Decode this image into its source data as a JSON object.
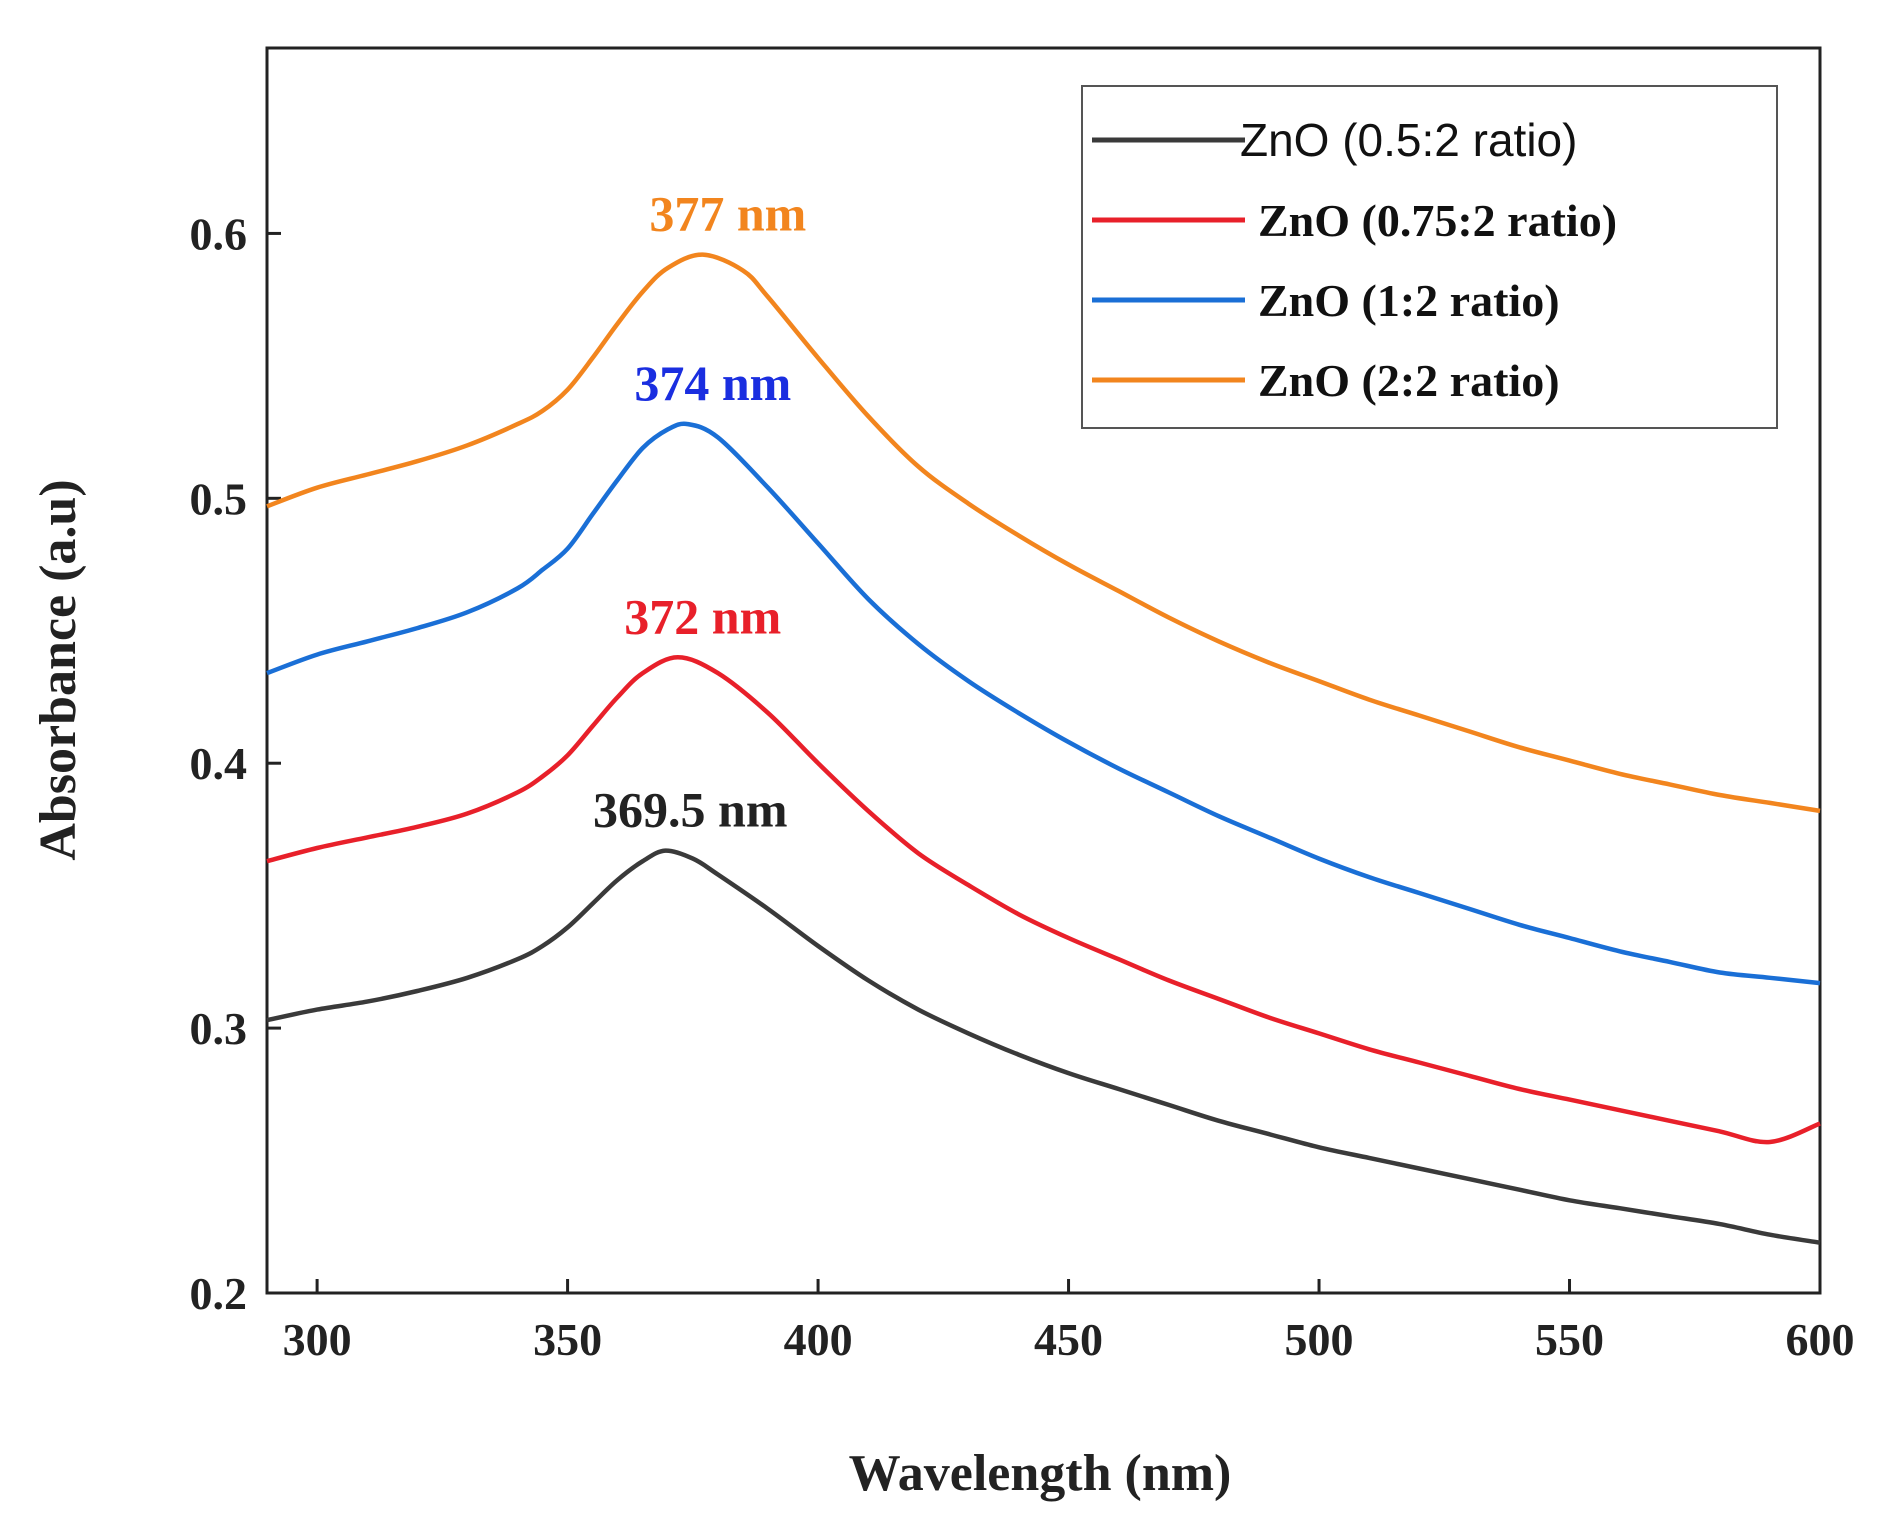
{
  "chart_data": {
    "type": "line",
    "xlabel": "Wavelength (nm)",
    "ylabel": "Absorbance (a.u)",
    "xlim": [
      290,
      600
    ],
    "ylim": [
      0.2,
      0.67
    ],
    "xticks": [
      300,
      350,
      400,
      450,
      500,
      550,
      600
    ],
    "yticks": [
      0.2,
      0.3,
      0.4,
      0.5,
      0.6
    ],
    "xtick_labels": [
      "300",
      "350",
      "400",
      "450",
      "500",
      "550",
      "600"
    ],
    "ytick_labels": [
      "0.2",
      "0.3",
      "0.4",
      "0.5",
      "0.6"
    ],
    "grid": false,
    "legend_position": "top-right",
    "series": [
      {
        "name": "ZnO (0.5:2 ratio)",
        "color": "#3a3a3a",
        "x": [
          290,
          300,
          310,
          320,
          330,
          340,
          345,
          350,
          355,
          360,
          365,
          369.5,
          375,
          380,
          390,
          400,
          410,
          420,
          430,
          440,
          450,
          460,
          470,
          480,
          490,
          500,
          510,
          520,
          530,
          540,
          550,
          560,
          570,
          580,
          590,
          600
        ],
        "values": [
          0.303,
          0.307,
          0.31,
          0.314,
          0.319,
          0.326,
          0.331,
          0.338,
          0.347,
          0.356,
          0.363,
          0.367,
          0.364,
          0.358,
          0.345,
          0.331,
          0.318,
          0.307,
          0.298,
          0.29,
          0.283,
          0.277,
          0.271,
          0.265,
          0.26,
          0.255,
          0.251,
          0.247,
          0.243,
          0.239,
          0.235,
          0.232,
          0.229,
          0.226,
          0.222,
          0.219
        ]
      },
      {
        "name": "ZnO (0.75:2 ratio)",
        "color": "#e8202a",
        "x": [
          290,
          300,
          310,
          320,
          330,
          340,
          345,
          350,
          355,
          360,
          365,
          372,
          380,
          390,
          400,
          410,
          420,
          430,
          440,
          450,
          460,
          470,
          480,
          490,
          500,
          510,
          520,
          530,
          540,
          550,
          560,
          570,
          580,
          590,
          600
        ],
        "values": [
          0.363,
          0.368,
          0.372,
          0.376,
          0.381,
          0.389,
          0.395,
          0.403,
          0.414,
          0.425,
          0.434,
          0.44,
          0.434,
          0.419,
          0.4,
          0.382,
          0.366,
          0.354,
          0.343,
          0.334,
          0.326,
          0.318,
          0.311,
          0.304,
          0.298,
          0.292,
          0.287,
          0.282,
          0.277,
          0.273,
          0.269,
          0.265,
          0.261,
          0.257,
          0.264
        ]
      },
      {
        "name": "ZnO (1:2 ratio)",
        "color": "#1a6fd6",
        "x": [
          290,
          300,
          310,
          320,
          330,
          340,
          345,
          350,
          355,
          360,
          365,
          370,
          374,
          380,
          390,
          400,
          410,
          420,
          430,
          440,
          450,
          460,
          470,
          480,
          490,
          500,
          510,
          520,
          530,
          540,
          550,
          560,
          570,
          580,
          590,
          600
        ],
        "values": [
          0.434,
          0.441,
          0.446,
          0.451,
          0.457,
          0.466,
          0.473,
          0.481,
          0.494,
          0.507,
          0.519,
          0.526,
          0.528,
          0.523,
          0.504,
          0.483,
          0.462,
          0.445,
          0.431,
          0.419,
          0.408,
          0.398,
          0.389,
          0.38,
          0.372,
          0.364,
          0.357,
          0.351,
          0.345,
          0.339,
          0.334,
          0.329,
          0.325,
          0.321,
          0.319,
          0.317
        ]
      },
      {
        "name": "ZnO (2:2 ratio)",
        "color": "#f2851e",
        "x": [
          290,
          300,
          310,
          320,
          330,
          340,
          345,
          350,
          355,
          360,
          365,
          370,
          377,
          385,
          390,
          400,
          410,
          420,
          430,
          440,
          450,
          460,
          470,
          480,
          490,
          500,
          510,
          520,
          530,
          540,
          550,
          560,
          570,
          580,
          590,
          600
        ],
        "values": [
          0.497,
          0.504,
          0.509,
          0.514,
          0.52,
          0.528,
          0.533,
          0.541,
          0.553,
          0.566,
          0.578,
          0.587,
          0.592,
          0.586,
          0.576,
          0.553,
          0.531,
          0.512,
          0.498,
          0.486,
          0.475,
          0.465,
          0.455,
          0.446,
          0.438,
          0.431,
          0.424,
          0.418,
          0.412,
          0.406,
          0.401,
          0.396,
          0.392,
          0.388,
          0.385,
          0.382
        ]
      }
    ],
    "annotations": [
      {
        "text": "377 nm",
        "x": 377,
        "y": 0.592,
        "color": "#f2851e"
      },
      {
        "text": "374 nm",
        "x": 374,
        "y": 0.528,
        "color": "#1a2ee0"
      },
      {
        "text": "372 nm",
        "x": 372,
        "y": 0.44,
        "color": "#e8202a"
      },
      {
        "text": "369.5 nm",
        "x": 369.5,
        "y": 0.367,
        "color": "#222222"
      }
    ]
  }
}
